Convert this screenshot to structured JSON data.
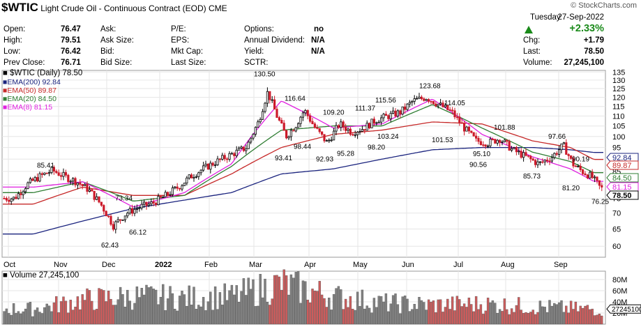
{
  "header": {
    "symbol": "$WTIC",
    "name": "Light Crude Oil - Continuous Contract (EOD)",
    "exchange": "CME",
    "watermark": "© StockCharts.com",
    "date_day": "Tuesday",
    "date": "27-Sep-2022",
    "change_pct": "+2.33%",
    "quote": [
      {
        "label": "Open:",
        "value": "76.47"
      },
      {
        "label": "High:",
        "value": "79.51"
      },
      {
        "label": "Low:",
        "value": "76.42"
      },
      {
        "label": "Prev Close:",
        "value": "76.71"
      }
    ],
    "bid_ask": [
      "Ask:",
      "Ask Size:",
      "Bid:",
      "Bid Size:"
    ],
    "fundamentals": [
      "P/E:",
      "EPS:",
      "Mkt Cap:",
      "Last Size:"
    ],
    "misc": [
      {
        "label": "Options:",
        "value": "no"
      },
      {
        "label": "Annual Dividend:",
        "value": "N/A"
      },
      {
        "label": "Yield:",
        "value": "N/A"
      },
      {
        "label": "SCTR:",
        "value": ""
      }
    ],
    "last": [
      {
        "label": "Chg:",
        "value": "+1.79"
      },
      {
        "label": "Last:",
        "value": "78.50"
      },
      {
        "label": "Volume:",
        "value": "27,245,100"
      }
    ]
  },
  "colors": {
    "up": "#000000",
    "down": "#cc1a2a",
    "ema200": "#1a237e",
    "ema50": "#c62828",
    "ema20": "#2e7d32",
    "ema8": "#e020e0",
    "vol_up": "#808080",
    "vol_down": "#cd5c5c",
    "grid": "#e6e6e6"
  },
  "chart_data": [
    {
      "type": "line",
      "title": "$WTIC (Daily) 78.50",
      "ylim": [
        57,
        136
      ],
      "y_scale": "log",
      "y_ticks": [
        "135",
        "130",
        "125",
        "120",
        "115",
        "110",
        "105",
        "100",
        "95",
        "90",
        "85",
        "80",
        "75",
        "70",
        "65",
        "60"
      ],
      "x_ticks": [
        "Oct",
        "Nov",
        "Dec",
        "2022",
        "Feb",
        "Mar",
        "Apr",
        "May",
        "Jun",
        "Jul",
        "Aug",
        "Sep"
      ],
      "legend": [
        {
          "key": "ema200",
          "label": "EMA(200) 92.84"
        },
        {
          "key": "ema50",
          "label": "EMA(50) 89.87"
        },
        {
          "key": "ema20",
          "label": "EMA(20) 84.50"
        },
        {
          "key": "ema8",
          "label": "EMA(8) 81.15"
        }
      ],
      "annotations": [
        {
          "text": "85.41",
          "x": "Oct",
          "y": 85.41
        },
        {
          "text": "73.34",
          "x": "Dec",
          "y": 73.34
        },
        {
          "text": "62.43",
          "x": "Dec",
          "y": 62.43
        },
        {
          "text": "66.12",
          "x": "Dec",
          "y": 66.12
        },
        {
          "text": "130.50",
          "x": "Mar",
          "y": 130.5
        },
        {
          "text": "116.64",
          "x": "Mar",
          "y": 116.64
        },
        {
          "text": "93.41",
          "x": "Mar",
          "y": 93.41
        },
        {
          "text": "98.44",
          "x": "Mar",
          "y": 98.44
        },
        {
          "text": "92.93",
          "x": "Apr",
          "y": 92.93
        },
        {
          "text": "109.20",
          "x": "Apr",
          "y": 109.2
        },
        {
          "text": "95.28",
          "x": "Apr",
          "y": 95.28
        },
        {
          "text": "111.37",
          "x": "May",
          "y": 111.37
        },
        {
          "text": "98.20",
          "x": "May",
          "y": 98.2
        },
        {
          "text": "115.56",
          "x": "May",
          "y": 115.56
        },
        {
          "text": "103.24",
          "x": "May",
          "y": 103.24
        },
        {
          "text": "123.68",
          "x": "Jun",
          "y": 123.68
        },
        {
          "text": "114.05",
          "x": "Jun",
          "y": 114.05
        },
        {
          "text": "101.53",
          "x": "Jun",
          "y": 101.53
        },
        {
          "text": "95.10",
          "x": "Jul",
          "y": 95.1
        },
        {
          "text": "90.56",
          "x": "Jul",
          "y": 90.56
        },
        {
          "text": "101.88",
          "x": "Jul",
          "y": 101.88
        },
        {
          "text": "85.73",
          "x": "Aug",
          "y": 85.73
        },
        {
          "text": "97.66",
          "x": "Aug",
          "y": 97.66
        },
        {
          "text": "90.19",
          "x": "Sep",
          "y": 90.19
        },
        {
          "text": "81.20",
          "x": "Sep",
          "y": 81.2
        },
        {
          "text": "76.25",
          "x": "Sep",
          "y": 76.25
        }
      ],
      "last_labels": [
        {
          "key": "ema200",
          "text": "92.84",
          "value": 92.84
        },
        {
          "key": "ema50",
          "text": "89.87",
          "value": 89.87
        },
        {
          "key": "ema20",
          "text": "84.50",
          "value": 84.5
        },
        {
          "key": "ema8",
          "text": "81.15",
          "value": 81.15
        },
        {
          "key": "price",
          "text": "78.50",
          "value": 78.5
        }
      ],
      "price_waypoints": [
        [
          "Oct",
          75
        ],
        [
          "Oct",
          80
        ],
        [
          "Oct",
          83
        ],
        [
          "Oct",
          85.41
        ],
        [
          "Nov",
          83
        ],
        [
          "Nov",
          81
        ],
        [
          "Nov",
          78
        ],
        [
          "Nov",
          73
        ],
        [
          "Dec",
          66
        ],
        [
          "Dec",
          70
        ],
        [
          "Dec",
          72
        ],
        [
          "Dec",
          73.34
        ],
        [
          "2022",
          76
        ],
        [
          "2022",
          79
        ],
        [
          "2022",
          83
        ],
        [
          "2022",
          86
        ],
        [
          "Feb",
          89
        ],
        [
          "Feb",
          92
        ],
        [
          "Feb",
          95
        ],
        [
          "Mar",
          107
        ],
        [
          "Mar",
          123
        ],
        [
          "Mar",
          110
        ],
        [
          "Mar",
          100
        ],
        [
          "Mar",
          105
        ],
        [
          "Mar",
          113
        ],
        [
          "Apr",
          104
        ],
        [
          "Apr",
          97
        ],
        [
          "Apr",
          106
        ],
        [
          "Apr",
          102
        ],
        [
          "May",
          104
        ],
        [
          "May",
          108
        ],
        [
          "May",
          110
        ],
        [
          "May",
          112
        ],
        [
          "Jun",
          118
        ],
        [
          "Jun",
          120
        ],
        [
          "Jun",
          116
        ],
        [
          "Jun",
          112
        ],
        [
          "Jul",
          104
        ],
        [
          "Jul",
          98
        ],
        [
          "Jul",
          97
        ],
        [
          "Jul",
          99
        ],
        [
          "Aug",
          94
        ],
        [
          "Aug",
          91
        ],
        [
          "Aug",
          88
        ],
        [
          "Aug",
          91
        ],
        [
          "Sep",
          96
        ],
        [
          "Sep",
          88
        ],
        [
          "Sep",
          85
        ],
        [
          "Sep",
          83
        ],
        [
          "Sep",
          78.5
        ]
      ],
      "ema200_waypoints": [
        [
          "Oct",
          63.5
        ],
        [
          "Dec",
          71.5
        ],
        [
          "Feb",
          77
        ],
        [
          "Mar",
          84
        ],
        [
          "Apr",
          86
        ],
        [
          "May",
          90
        ],
        [
          "Jun",
          94
        ],
        [
          "Jul",
          95
        ],
        [
          "Aug",
          95
        ],
        [
          "Sep",
          94
        ],
        [
          "Sep",
          92.84
        ]
      ],
      "ema50_waypoints": [
        [
          "Oct",
          73
        ],
        [
          "Nov",
          79
        ],
        [
          "Dec",
          76
        ],
        [
          "2022",
          76
        ],
        [
          "Feb",
          84
        ],
        [
          "Mar",
          95
        ],
        [
          "Apr",
          101
        ],
        [
          "May",
          103
        ],
        [
          "Jun",
          107
        ],
        [
          "Jul",
          106
        ],
        [
          "Aug",
          98
        ],
        [
          "Sep",
          95
        ],
        [
          "Sep",
          89.87
        ]
      ],
      "ema20_waypoints": [
        [
          "Oct",
          77
        ],
        [
          "Nov",
          81
        ],
        [
          "Dec",
          74
        ],
        [
          "2022",
          76
        ],
        [
          "Feb",
          87
        ],
        [
          "Mar",
          103
        ],
        [
          "Apr",
          105
        ],
        [
          "May",
          105
        ],
        [
          "Jun",
          116
        ],
        [
          "Jul",
          104
        ],
        [
          "Aug",
          93
        ],
        [
          "Sep",
          89
        ],
        [
          "Sep",
          84.5
        ]
      ],
      "ema8_waypoints": [
        [
          "Oct",
          79
        ],
        [
          "Nov",
          81
        ],
        [
          "Dec",
          72
        ],
        [
          "2022",
          77
        ],
        [
          "Feb",
          88
        ],
        [
          "Mar",
          118
        ],
        [
          "Apr",
          104
        ],
        [
          "May",
          106
        ],
        [
          "Jun",
          119
        ],
        [
          "Jul",
          101
        ],
        [
          "Aug",
          91
        ],
        [
          "Sep",
          86
        ],
        [
          "Sep",
          81.15
        ]
      ]
    },
    {
      "type": "bar",
      "title": "Volume 27,245,100",
      "ylim": [
        0,
        95
      ],
      "y_unit": "M",
      "y_ticks": [
        "80M",
        "60M",
        "40M",
        "20M"
      ],
      "last_label": "27245100",
      "last_value": 27.2451,
      "volume_waypoints": [
        [
          "Oct",
          30
        ],
        [
          "Nov",
          48
        ],
        [
          "Dec",
          55
        ],
        [
          "2022",
          52
        ],
        [
          "Feb",
          55
        ],
        [
          "Mar",
          80
        ],
        [
          "Apr",
          55
        ],
        [
          "May",
          42
        ],
        [
          "Jun",
          38
        ],
        [
          "Jul",
          40
        ],
        [
          "Aug",
          35
        ],
        [
          "Sep",
          30
        ]
      ]
    }
  ]
}
